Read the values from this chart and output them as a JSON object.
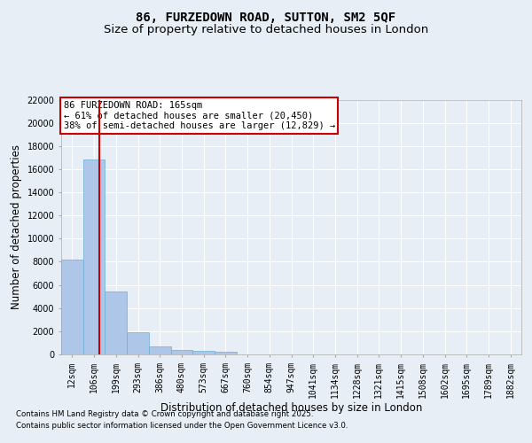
{
  "title": "86, FURZEDOWN ROAD, SUTTON, SM2 5QF",
  "subtitle": "Size of property relative to detached houses in London",
  "xlabel": "Distribution of detached houses by size in London",
  "ylabel": "Number of detached properties",
  "categories": [
    "12sqm",
    "106sqm",
    "199sqm",
    "293sqm",
    "386sqm",
    "480sqm",
    "573sqm",
    "667sqm",
    "760sqm",
    "854sqm",
    "947sqm",
    "1041sqm",
    "1134sqm",
    "1228sqm",
    "1321sqm",
    "1415sqm",
    "1508sqm",
    "1602sqm",
    "1695sqm",
    "1789sqm",
    "1882sqm"
  ],
  "values": [
    8200,
    16800,
    5450,
    1900,
    700,
    380,
    280,
    200,
    0,
    0,
    0,
    0,
    0,
    0,
    0,
    0,
    0,
    0,
    0,
    0,
    0
  ],
  "bar_color": "#aec6e8",
  "bar_edgecolor": "#6baed6",
  "vline_x": 1.25,
  "vline_color": "#cc0000",
  "annotation_text": "86 FURZEDOWN ROAD: 165sqm\n← 61% of detached houses are smaller (20,450)\n38% of semi-detached houses are larger (12,829) →",
  "annotation_box_edgecolor": "#cc0000",
  "annotation_box_facecolor": "#ffffff",
  "ylim": [
    0,
    22000
  ],
  "yticks": [
    0,
    2000,
    4000,
    6000,
    8000,
    10000,
    12000,
    14000,
    16000,
    18000,
    20000,
    22000
  ],
  "background_color": "#e8eef5",
  "plot_bg_color": "#e8eef5",
  "grid_color": "#ffffff",
  "footer_line1": "Contains HM Land Registry data © Crown copyright and database right 2025.",
  "footer_line2": "Contains public sector information licensed under the Open Government Licence v3.0.",
  "title_fontsize": 10,
  "subtitle_fontsize": 9.5,
  "tick_fontsize": 7,
  "label_fontsize": 8.5
}
